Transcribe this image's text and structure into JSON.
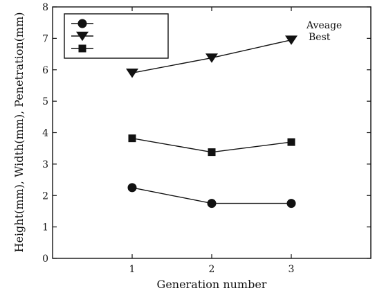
{
  "chart_data": {
    "type": "line",
    "xlabel": "Generation number",
    "ylabel": "Height(mm), Width(mm), Penetration(mm)",
    "xlim": [
      0,
      4
    ],
    "ylim": [
      0,
      8
    ],
    "x_ticks": [
      1,
      2,
      3
    ],
    "y_ticks": [
      0,
      1,
      2,
      3,
      4,
      5,
      6,
      7,
      8
    ],
    "x": [
      1,
      2,
      3
    ],
    "grid": false,
    "legend_position": "top-left",
    "series": [
      {
        "marker": "circle",
        "color": "#111111",
        "values": [
          2.25,
          1.75,
          1.75
        ]
      },
      {
        "marker": "triangle-down",
        "color": "#111111",
        "values": [
          5.9,
          6.38,
          6.95
        ]
      },
      {
        "marker": "square",
        "color": "#111111",
        "values": [
          3.82,
          3.38,
          3.7
        ]
      }
    ],
    "annotations": [
      "Aveage",
      "Best"
    ]
  }
}
